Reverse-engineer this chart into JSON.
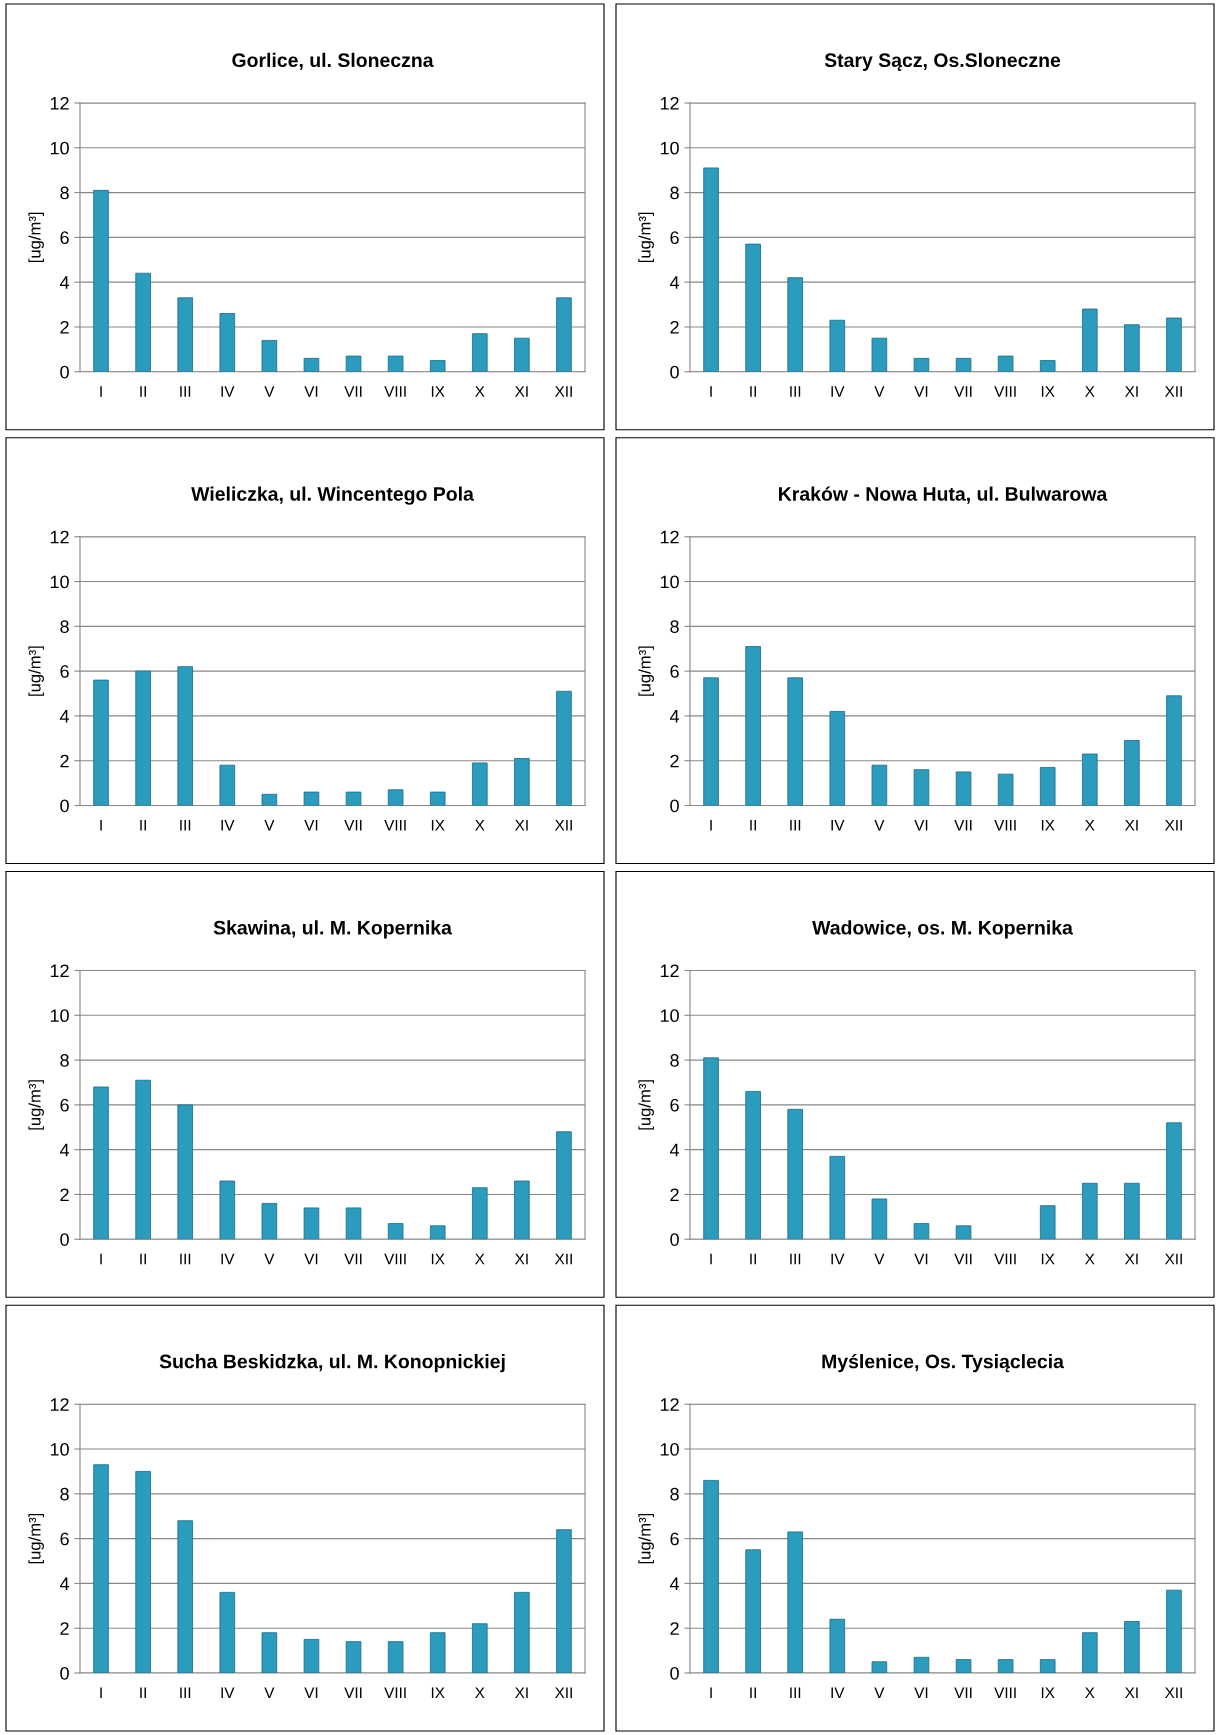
{
  "chart_data": [
    {
      "type": "bar",
      "title": "Gorlice, ul. Sloneczna",
      "ylabel": "[ug/m³]",
      "categories": [
        "I",
        "II",
        "III",
        "IV",
        "V",
        "VI",
        "VII",
        "VIII",
        "IX",
        "X",
        "XI",
        "XII"
      ],
      "values": [
        8.1,
        4.4,
        3.3,
        2.6,
        1.4,
        0.6,
        0.7,
        0.7,
        0.5,
        1.7,
        1.5,
        3.3
      ],
      "color": "#2b9cbd",
      "ylim": [
        0,
        12
      ],
      "yticks": [
        0,
        2,
        4,
        6,
        8,
        10,
        12
      ],
      "grid": "y"
    },
    {
      "type": "bar",
      "title": "Stary Sącz, Os.Sloneczne",
      "ylabel": "[ug/m³]",
      "categories": [
        "I",
        "II",
        "III",
        "IV",
        "V",
        "VI",
        "VII",
        "VIII",
        "IX",
        "X",
        "XI",
        "XII"
      ],
      "values": [
        9.1,
        5.7,
        4.2,
        2.3,
        1.5,
        0.6,
        0.6,
        0.7,
        0.5,
        2.8,
        2.1,
        2.4
      ],
      "color": "#2b9cbd",
      "ylim": [
        0,
        12
      ],
      "yticks": [
        0,
        2,
        4,
        6,
        8,
        10,
        12
      ],
      "grid": "y"
    },
    {
      "type": "bar",
      "title": "Wieliczka, ul. Wincentego Pola",
      "ylabel": "[ug/m³]",
      "categories": [
        "I",
        "II",
        "III",
        "IV",
        "V",
        "VI",
        "VII",
        "VIII",
        "IX",
        "X",
        "XI",
        "XII"
      ],
      "values": [
        5.6,
        6.0,
        6.2,
        1.8,
        0.5,
        0.6,
        0.6,
        0.7,
        0.6,
        1.9,
        2.1,
        5.1
      ],
      "color": "#2b9cbd",
      "ylim": [
        0,
        12
      ],
      "yticks": [
        0,
        2,
        4,
        6,
        8,
        10,
        12
      ],
      "grid": "y"
    },
    {
      "type": "bar",
      "title": "Kraków - Nowa Huta, ul. Bulwarowa",
      "ylabel": "[ug/m³]",
      "categories": [
        "I",
        "II",
        "III",
        "IV",
        "V",
        "VI",
        "VII",
        "VIII",
        "IX",
        "X",
        "XI",
        "XII"
      ],
      "values": [
        5.7,
        7.1,
        5.7,
        4.2,
        1.8,
        1.6,
        1.5,
        1.4,
        1.7,
        2.3,
        2.9,
        4.9
      ],
      "color": "#2b9cbd",
      "ylim": [
        0,
        12
      ],
      "yticks": [
        0,
        2,
        4,
        6,
        8,
        10,
        12
      ],
      "grid": "y"
    },
    {
      "type": "bar",
      "title": "Skawina, ul. M. Kopernika",
      "ylabel": "[ug/m³]",
      "categories": [
        "I",
        "II",
        "III",
        "IV",
        "V",
        "VI",
        "VII",
        "VIII",
        "IX",
        "X",
        "XI",
        "XII"
      ],
      "values": [
        6.8,
        7.1,
        6.0,
        2.6,
        1.6,
        1.4,
        1.4,
        0.7,
        0.6,
        2.3,
        2.6,
        4.8
      ],
      "color": "#2b9cbd",
      "ylim": [
        0,
        12
      ],
      "yticks": [
        0,
        2,
        4,
        6,
        8,
        10,
        12
      ],
      "grid": "y"
    },
    {
      "type": "bar",
      "title": "Wadowice, os. M. Kopernika",
      "ylabel": "[ug/m³]",
      "categories": [
        "I",
        "II",
        "III",
        "IV",
        "V",
        "VI",
        "VII",
        "VIII",
        "IX",
        "X",
        "XI",
        "XII"
      ],
      "values": [
        8.1,
        6.6,
        5.8,
        3.7,
        1.8,
        0.7,
        0.6,
        null,
        1.5,
        2.5,
        2.5,
        5.2
      ],
      "color": "#2b9cbd",
      "ylim": [
        0,
        12
      ],
      "yticks": [
        0,
        2,
        4,
        6,
        8,
        10,
        12
      ],
      "grid": "y"
    },
    {
      "type": "bar",
      "title": "Sucha Beskidzka, ul. M. Konopnickiej",
      "ylabel": "[ug/m³]",
      "categories": [
        "I",
        "II",
        "III",
        "IV",
        "V",
        "VI",
        "VII",
        "VIII",
        "IX",
        "X",
        "XI",
        "XII"
      ],
      "values": [
        9.3,
        9.0,
        6.8,
        3.6,
        1.8,
        1.5,
        1.4,
        1.4,
        1.8,
        2.2,
        3.6,
        6.4
      ],
      "color": "#2b9cbd",
      "ylim": [
        0,
        12
      ],
      "yticks": [
        0,
        2,
        4,
        6,
        8,
        10,
        12
      ],
      "grid": "y"
    },
    {
      "type": "bar",
      "title": "Myślenice, Os. Tysiąclecia",
      "ylabel": "[ug/m³]",
      "categories": [
        "I",
        "II",
        "III",
        "IV",
        "V",
        "VI",
        "VII",
        "VIII",
        "IX",
        "X",
        "XI",
        "XII"
      ],
      "values": [
        8.6,
        5.5,
        6.3,
        2.4,
        0.5,
        0.7,
        0.6,
        0.6,
        0.6,
        1.8,
        2.3,
        3.7
      ],
      "color": "#2b9cbd",
      "ylim": [
        0,
        12
      ],
      "yticks": [
        0,
        2,
        4,
        6,
        8,
        10,
        12
      ],
      "grid": "y"
    }
  ]
}
